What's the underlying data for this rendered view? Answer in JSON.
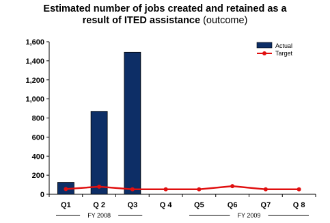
{
  "title": {
    "line1": "Estimated number of jobs created and retained as a",
    "line2_bold": "result of ITED assistance",
    "line2_suffix": " (outcome)"
  },
  "chart_data": {
    "type": "bar",
    "categories": [
      "Q1",
      "Q 2",
      "Q3",
      "Q 4",
      "Q5",
      "Q6",
      "Q7",
      "Q 8"
    ],
    "series": [
      {
        "name": "Actual",
        "type": "bar",
        "color": "#0d2e66",
        "values": [
          125,
          870,
          1490,
          null,
          null,
          null,
          null,
          null
        ]
      },
      {
        "name": "Target",
        "type": "line",
        "color": "#e01010",
        "values": [
          55,
          80,
          52,
          52,
          52,
          85,
          52,
          52
        ]
      }
    ],
    "ylim": [
      0,
      1600
    ],
    "yticks": [
      0,
      200,
      400,
      600,
      800,
      1000,
      1200,
      1400,
      1600
    ],
    "ytick_labels": [
      "0",
      "200",
      "400",
      "600",
      "800",
      "1,000",
      "1,200",
      "1,400",
      "1,600"
    ],
    "groups": [
      {
        "label": "FY 2008",
        "from": 0,
        "to": 2
      },
      {
        "label": "FY 2009",
        "from": 4,
        "to": 7
      }
    ],
    "legend_position": "top-right",
    "grid": false
  }
}
